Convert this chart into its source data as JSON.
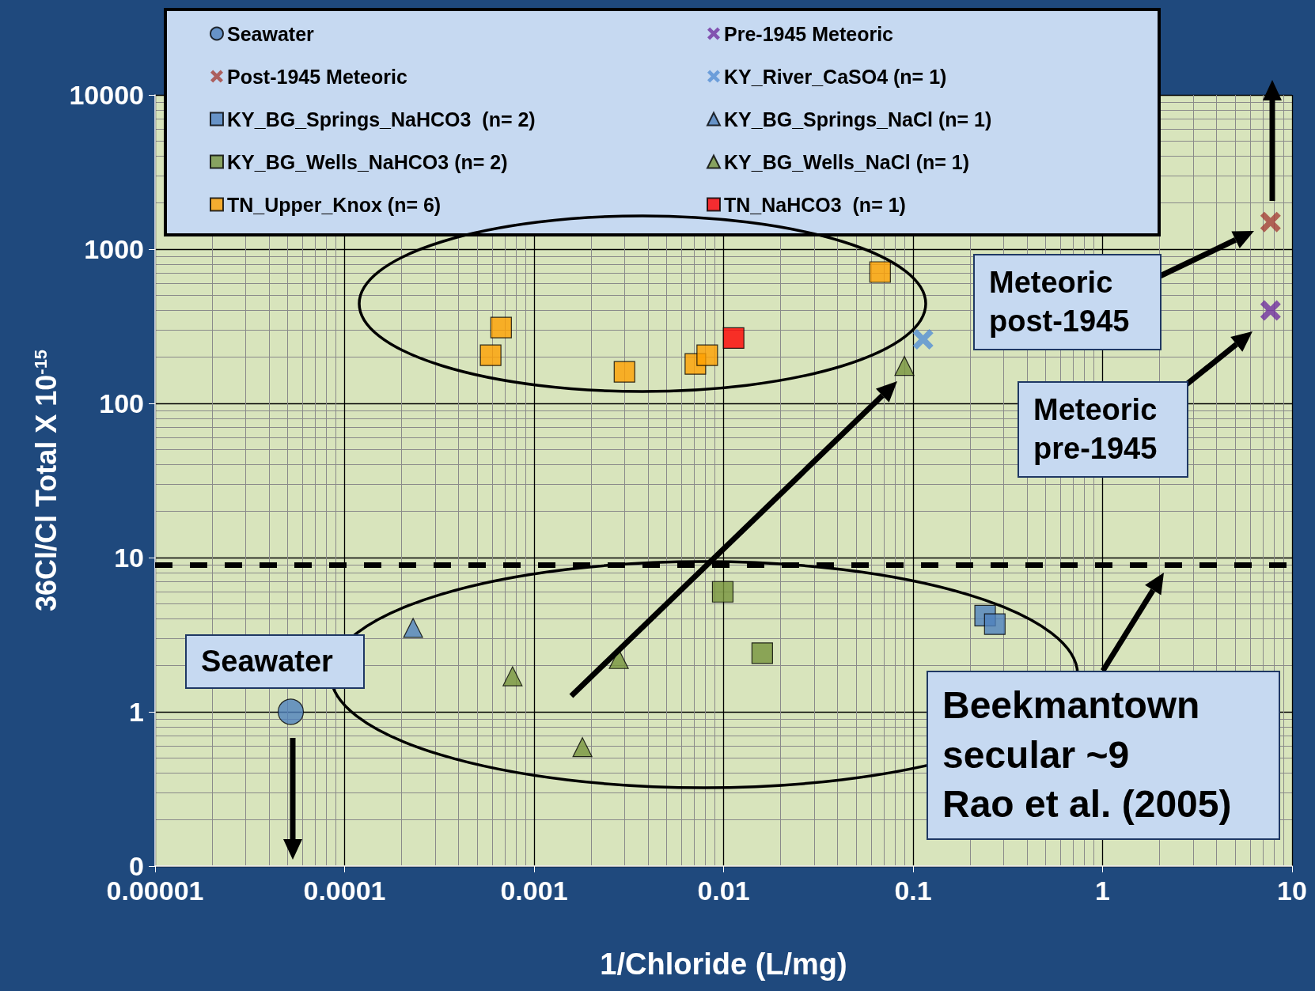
{
  "chart_data": {
    "type": "scatter",
    "xlabel": "1/Chloride (L/mg)",
    "ylabel": "36Cl/Cl Total X 10$^{-15}$",
    "log": "xy",
    "grid": true,
    "legend": "top",
    "xlim": [
      1e-05,
      10
    ],
    "xticks": [
      {
        "value": 1e-05,
        "label": "0.00001"
      },
      0.0001,
      0.001,
      0.01,
      0.1,
      1,
      10
    ],
    "ylim": [
      0.1,
      10000
    ],
    "yticks": [
      {
        "value": 0.1,
        "label": "0"
      },
      1,
      10,
      100,
      1000,
      10000
    ],
    "series": [
      {
        "name": "Seawater",
        "color": "#4f81bd",
        "marker": "circle",
        "x": [
          5.2e-05
        ],
        "values": [
          1
        ]
      },
      {
        "name": "Post-1945 Meteoric",
        "color": "#a5403a",
        "marker": "cross",
        "x": [
          7.7
        ],
        "values": [
          1500
        ]
      },
      {
        "name": "KY_BG_Springs_NaHCO3  (n= 2)",
        "color": "#4f81bd",
        "marker": "square",
        "x": [
          0.24,
          0.27
        ],
        "values": [
          4.2,
          3.7
        ]
      },
      {
        "name": "KY_BG_Wells_NaHCO3 (n= 2)",
        "color": "#77933c",
        "marker": "square",
        "x": [
          0.0099,
          0.016
        ],
        "values": [
          6.0,
          2.4
        ]
      },
      {
        "name": "TN_Upper_Knox (n= 6)",
        "color": "#ffa000",
        "marker": "square",
        "x": [
          0.00059,
          0.00067,
          0.003,
          0.0071,
          0.0082,
          0.067
        ],
        "values": [
          205,
          310,
          160,
          180,
          205,
          710
        ]
      },
      {
        "name": "Pre-1945 Meteoric",
        "color": "#7030a0",
        "marker": "cross",
        "x": [
          7.7
        ],
        "values": [
          400
        ]
      },
      {
        "name": "KY_River_CaSO4 (n= 1)",
        "color": "#558ed5",
        "marker": "cross",
        "x": [
          0.113
        ],
        "values": [
          260
        ]
      },
      {
        "name": "KY_BG_Springs_NaCl (n= 1)",
        "color": "#4f81bd",
        "marker": "triangle",
        "x": [
          0.00023
        ],
        "values": [
          3.5
        ]
      },
      {
        "name": "KY_BG_Wells_NaCl (n= 1)",
        "color": "#77933c",
        "marker": "triangle",
        "x": [
          0.00077,
          0.0018,
          0.0028,
          0.09
        ],
        "values": [
          1.7,
          0.59,
          2.2,
          175
        ]
      },
      {
        "name": "TN_NaHCO3  (n= 1)",
        "color": "#ff0000",
        "marker": "square",
        "x": [
          0.0113
        ],
        "values": [
          265
        ]
      }
    ],
    "ref_lines": [
      {
        "axis": "y",
        "value": 9,
        "color": "#000000",
        "line_style": "dashed"
      }
    ],
    "annotations": [
      "Meteoric\npost-1945",
      "Meteoric\npre-1945",
      "Seawater",
      "Beekmantown\nsecular ~9\nRao et al. (2005)"
    ]
  }
}
